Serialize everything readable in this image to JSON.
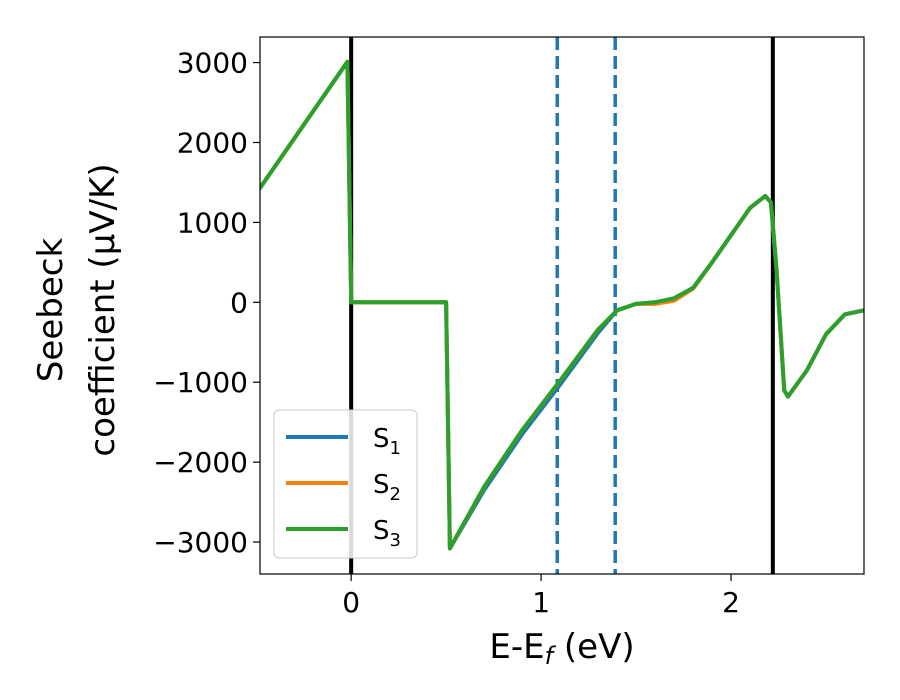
{
  "chart_data": {
    "type": "line",
    "xlabel": {
      "main": "E-E",
      "sub": "f",
      "tail": " (eV)"
    },
    "ylabel": {
      "line1": "Seebeck",
      "line2": "coefficient  (μV/K)"
    },
    "xlim": [
      -0.48,
      2.7
    ],
    "ylim": [
      -3400,
      3320
    ],
    "xticks": [
      0,
      1,
      2
    ],
    "xtick_labels": [
      "0",
      "1",
      "2"
    ],
    "yticks": [
      3000,
      2000,
      1000,
      0,
      -1000,
      -2000,
      -3000
    ],
    "ytick_labels": [
      "3000",
      "2000",
      "1000",
      "0",
      "−1000",
      "−2000",
      "−3000"
    ],
    "grid": false,
    "legend_position": "lower-left",
    "vlines": [
      {
        "x": 0.0,
        "color": "#000000",
        "style": "solid"
      },
      {
        "x": 2.22,
        "color": "#000000",
        "style": "solid"
      },
      {
        "x": 1.085,
        "color": "#1f77b4",
        "style": "dashed"
      },
      {
        "x": 1.39,
        "color": "#1f77b4",
        "style": "dashed"
      }
    ],
    "series": [
      {
        "name": "S",
        "sub": "1",
        "color": "#1f77b4",
        "x": [
          -0.48,
          -0.02,
          -0.01,
          0.0,
          0.5,
          0.51,
          0.52,
          0.7,
          0.9,
          1.1,
          1.3,
          1.4,
          1.5,
          1.6,
          1.7,
          1.8,
          1.9,
          2.0,
          2.1,
          2.18,
          2.21,
          2.24,
          2.28,
          2.3,
          2.4,
          2.5,
          2.6,
          2.7
        ],
        "y": [
          1430,
          3010,
          1500,
          0,
          0,
          -1500,
          -3080,
          -2350,
          -1650,
          -1030,
          -380,
          -100,
          -20,
          0,
          50,
          180,
          500,
          840,
          1180,
          1330,
          1250,
          400,
          -1100,
          -1180,
          -850,
          -400,
          -150,
          -100
        ]
      },
      {
        "name": "S",
        "sub": "2",
        "color": "#ff7f0e",
        "x": [
          -0.48,
          -0.02,
          -0.01,
          0.0,
          0.5,
          0.51,
          0.52,
          0.7,
          0.9,
          1.1,
          1.3,
          1.4,
          1.5,
          1.6,
          1.7,
          1.8,
          1.9,
          2.0,
          2.1,
          2.18,
          2.21,
          2.24,
          2.28,
          2.3,
          2.4,
          2.5,
          2.6,
          2.7
        ],
        "y": [
          1430,
          3010,
          1500,
          0,
          0,
          -1500,
          -3080,
          -2310,
          -1600,
          -980,
          -340,
          -100,
          -20,
          -20,
          20,
          170,
          500,
          840,
          1180,
          1330,
          1250,
          400,
          -1100,
          -1180,
          -850,
          -400,
          -150,
          -100
        ]
      },
      {
        "name": "S",
        "sub": "3",
        "color": "#2ca02c",
        "x": [
          -0.48,
          -0.02,
          -0.01,
          0.0,
          0.5,
          0.51,
          0.52,
          0.7,
          0.9,
          1.1,
          1.3,
          1.4,
          1.5,
          1.6,
          1.7,
          1.8,
          1.9,
          2.0,
          2.1,
          2.18,
          2.21,
          2.24,
          2.28,
          2.3,
          2.4,
          2.5,
          2.6,
          2.7
        ],
        "y": [
          1430,
          3010,
          1500,
          0,
          0,
          -1500,
          -3080,
          -2310,
          -1600,
          -980,
          -340,
          -100,
          -20,
          0,
          50,
          180,
          500,
          840,
          1180,
          1330,
          1250,
          400,
          -1100,
          -1180,
          -850,
          -400,
          -150,
          -100
        ]
      }
    ]
  }
}
